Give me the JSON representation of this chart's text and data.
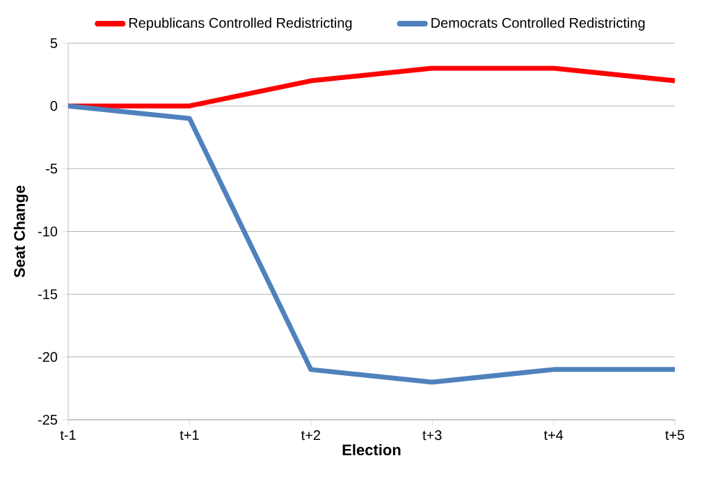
{
  "chart_data": {
    "type": "line",
    "xlabel": "Election",
    "ylabel": "Seat Change",
    "categories": [
      "t-1",
      "t+1",
      "t+2",
      "t+3",
      "t+4",
      "t+5"
    ],
    "series": [
      {
        "name": "Republicans Controlled Redistricting",
        "color": "#ff0000",
        "values": [
          0,
          0,
          2,
          3,
          3,
          2
        ]
      },
      {
        "name": "Democrats Controlled Redistricting",
        "color": "#4f81bd",
        "values": [
          0,
          -1,
          -21,
          -22,
          -21,
          -21
        ]
      }
    ],
    "ylim": [
      -25,
      5
    ],
    "yticks": [
      -25,
      -20,
      -15,
      -10,
      -5,
      0,
      5
    ],
    "grid": "y",
    "legend": "top",
    "marker": "none",
    "line_style": "solid"
  }
}
